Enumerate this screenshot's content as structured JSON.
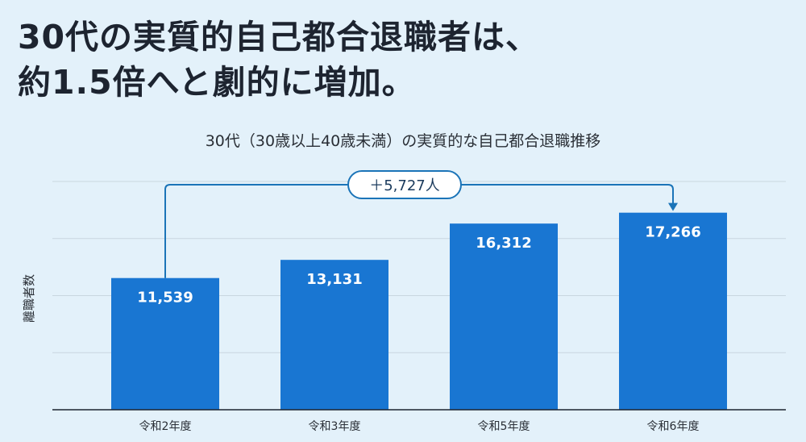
{
  "headline": {
    "line1": "30代の実質的自己都合退職者は、",
    "line2": "約1.5倍へと劇的に増加。"
  },
  "chart_data": {
    "type": "bar",
    "title": "30代（30歳以上40歳未満）の実質的な自己都合退職推移",
    "xlabel": "",
    "ylabel": "離職者数",
    "categories": [
      "令和2年度",
      "令和3年度",
      "令和5年度",
      "令和6年度"
    ],
    "values": [
      11539,
      13131,
      16312,
      17266
    ],
    "value_labels": [
      "11,539",
      "13,131",
      "16,312",
      "17,266"
    ],
    "ylim": [
      0,
      20000
    ],
    "grid": true,
    "annotation": {
      "text": "＋5,727人",
      "from_category": "令和2年度",
      "to_category": "令和6年度"
    },
    "colors": {
      "bar": "#1976d2",
      "connector": "#1b74b8",
      "annotation_fill": "#ffffff",
      "annotation_border": "#1b74b8",
      "grid": "#c9d6df",
      "baseline": "#1d2430"
    }
  }
}
